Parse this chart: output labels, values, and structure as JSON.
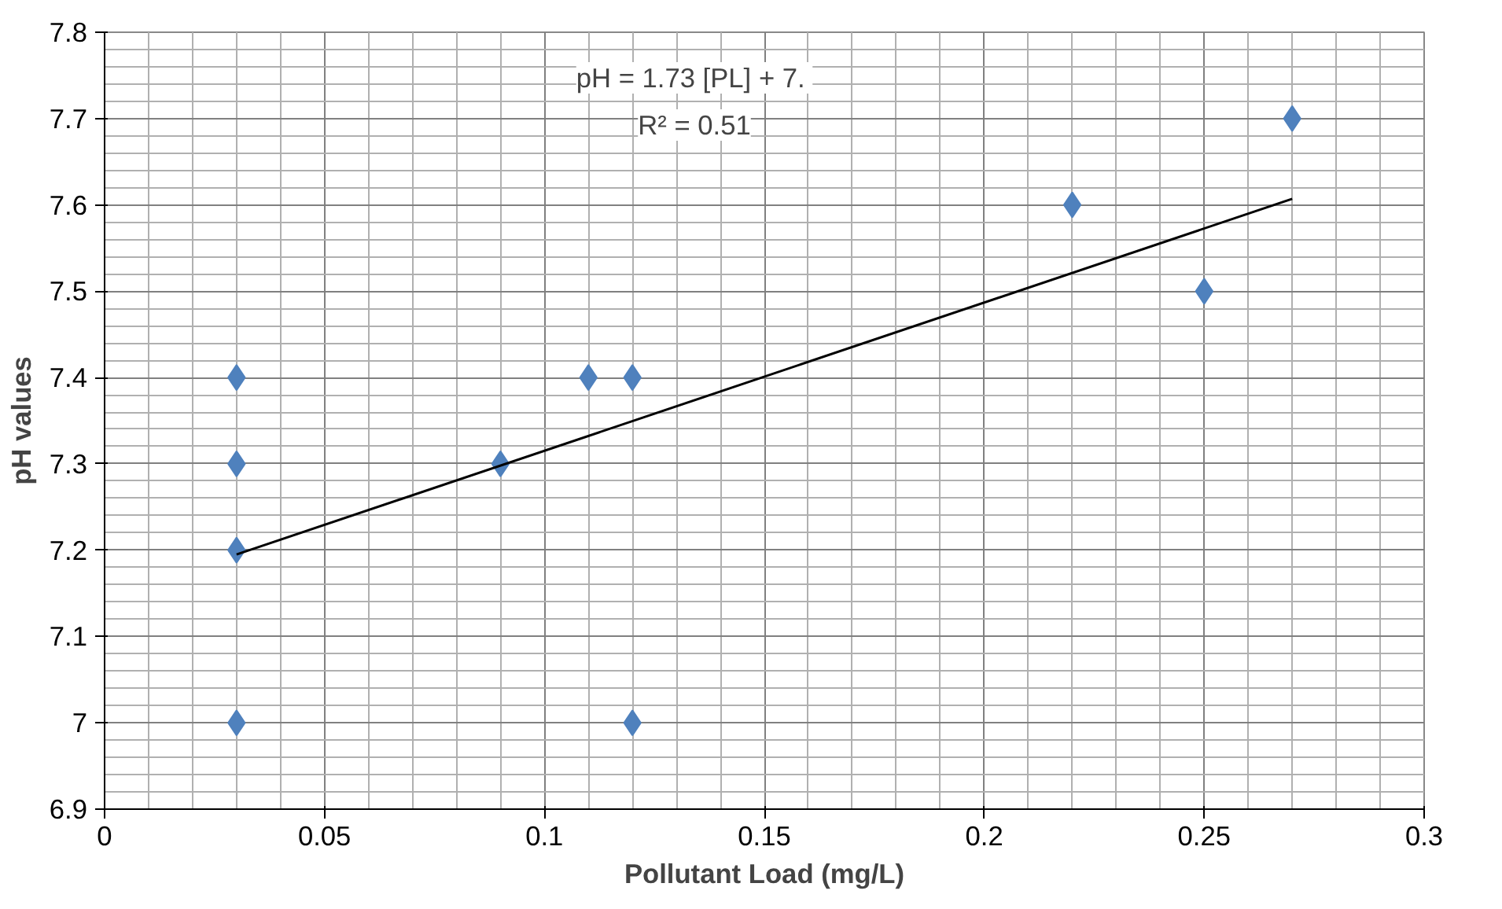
{
  "chart_data": {
    "type": "scatter",
    "xlabel": "Pollutant Load (mg/L)",
    "ylabel": "pH values",
    "xlim": [
      0,
      0.3
    ],
    "ylim": [
      6.9,
      7.8
    ],
    "xticks": [
      0,
      0.05,
      0.1,
      0.15,
      0.2,
      0.25,
      0.3
    ],
    "yticks": [
      {
        "value": 6.9,
        "label": "6.9"
      },
      {
        "value": 7.0,
        "label": "7"
      },
      {
        "value": 7.1,
        "label": "7.1"
      },
      {
        "value": 7.2,
        "label": "7.2"
      },
      {
        "value": 7.3,
        "label": "7.3"
      },
      {
        "value": 7.4,
        "label": "7.4"
      },
      {
        "value": 7.5,
        "label": "7.5"
      },
      {
        "value": 7.6,
        "label": "7.6"
      },
      {
        "value": 7.7,
        "label": "7.7"
      },
      {
        "value": 7.8,
        "label": "7.8"
      }
    ],
    "grid": true,
    "series": [
      {
        "marker": "diamond",
        "color": "#4f81bd",
        "x": [
          0.03,
          0.03,
          0.03,
          0.03,
          0.09,
          0.11,
          0.12,
          0.12,
          0.22,
          0.25,
          0.27
        ],
        "values": [
          7.4,
          7.3,
          7.2,
          7.0,
          7.3,
          7.4,
          7.4,
          7.0,
          7.6,
          7.5,
          7.7
        ]
      },
      {
        "type": "line",
        "color": "#000000",
        "x": [
          0.03,
          0.27
        ],
        "values": [
          7.195,
          7.607
        ]
      }
    ],
    "annotations": [
      "pH = 1.73 [PL]  + 7.",
      "R² = 0.51"
    ]
  }
}
